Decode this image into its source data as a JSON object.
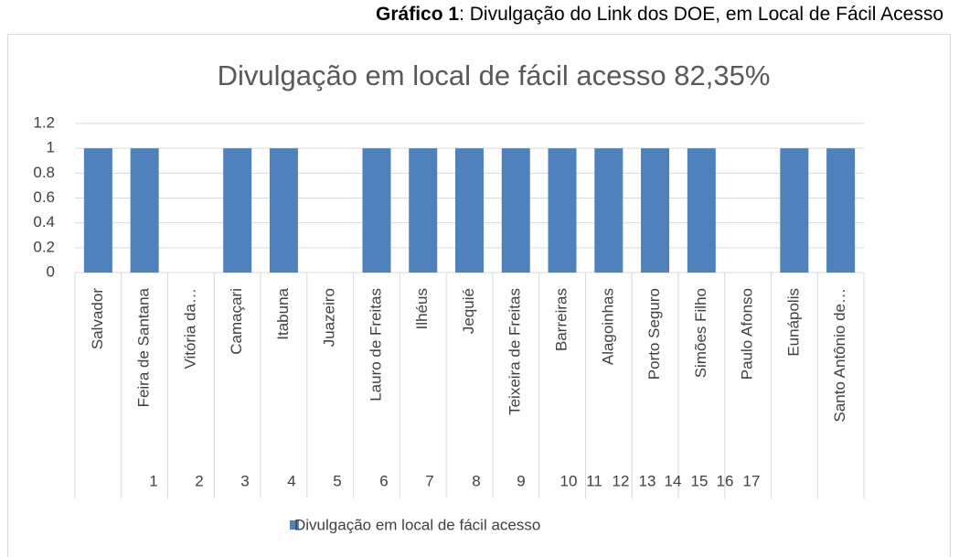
{
  "caption_label": "Gráfico 1",
  "caption_text": ": Divulgação do Link dos DOE, em Local de Fácil Acesso",
  "chart_data": {
    "type": "bar",
    "title": "Divulgação em local de fácil acesso 82,35%",
    "categories": [
      "Salvador",
      "Feira de Santana",
      "Vitória da…",
      "Camaçari",
      "Itabuna",
      "Juazeiro",
      "Lauro de Freitas",
      "Ilhéus",
      "Jequié",
      "Teixeira de Freitas",
      "Barreiras",
      "Alagoinhas",
      "Porto Seguro",
      "Simões Filho",
      "Paulo Afonso",
      "Eunápolis",
      "Santo Antônio de…"
    ],
    "category_numbers": [
      1,
      2,
      3,
      4,
      5,
      6,
      7,
      8,
      9,
      10,
      11,
      12,
      13,
      14,
      15,
      16,
      17
    ],
    "series": [
      {
        "name": "Divulgação em local de fácil acesso",
        "color": "#4f81bd",
        "values": [
          1,
          1,
          0,
          1,
          1,
          0,
          1,
          1,
          1,
          1,
          1,
          1,
          1,
          1,
          0,
          1,
          1
        ]
      }
    ],
    "ylim": [
      0,
      1.2
    ],
    "yticks": [
      0,
      0.2,
      0.4,
      0.6,
      0.8,
      1,
      1.2
    ],
    "grid": true,
    "legend": "bottom"
  }
}
